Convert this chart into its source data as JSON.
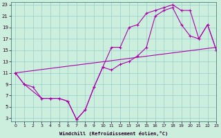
{
  "xlabel": "Windchill (Refroidissement éolien,°C)",
  "bg_color": "#cceedd",
  "line_color": "#aa00aa",
  "grid_color": "#99cccc",
  "xlim": [
    -0.5,
    23
  ],
  "ylim": [
    2.5,
    23.5
  ],
  "xticks": [
    0,
    1,
    2,
    3,
    4,
    5,
    6,
    7,
    8,
    9,
    10,
    11,
    12,
    13,
    14,
    15,
    16,
    17,
    18,
    19,
    20,
    21,
    22,
    23
  ],
  "yticks": [
    3,
    5,
    7,
    9,
    11,
    13,
    15,
    17,
    19,
    21,
    23
  ],
  "line1_x": [
    0,
    1,
    2,
    3,
    4,
    5,
    6,
    7,
    8,
    9,
    10,
    11,
    12,
    13,
    14,
    15,
    16,
    17,
    18,
    19,
    20,
    21,
    22,
    23
  ],
  "line1_y": [
    11,
    9,
    8.5,
    6.5,
    6.5,
    6.5,
    6,
    2.8,
    4.5,
    8.5,
    12,
    15.5,
    15.5,
    19,
    19.5,
    21.5,
    22,
    22.5,
    23,
    22,
    22,
    17,
    19.5,
    15
  ],
  "line2_x": [
    0,
    1,
    3,
    4,
    5,
    6,
    7,
    8,
    9,
    10,
    11,
    12,
    13,
    14,
    15,
    16,
    17,
    18,
    19,
    20,
    21,
    22,
    23
  ],
  "line2_y": [
    11,
    9,
    6.5,
    6.5,
    6.5,
    6,
    2.8,
    4.5,
    8.5,
    12,
    11.5,
    12.5,
    13,
    14,
    15.5,
    21,
    22,
    22.5,
    19.5,
    17.5,
    17,
    19.5,
    15
  ],
  "line3_x": [
    0,
    23
  ],
  "line3_y": [
    11,
    15.5
  ],
  "marker1_x": [
    0,
    1,
    2,
    3,
    4,
    5,
    6,
    7,
    8,
    9,
    10,
    11,
    12,
    13,
    14,
    15,
    16,
    17,
    18,
    19,
    20,
    21,
    22,
    23
  ],
  "marker1_y": [
    11,
    9,
    8.5,
    6.5,
    6.5,
    6.5,
    6,
    2.8,
    4.5,
    8.5,
    12,
    15.5,
    15.5,
    19,
    19.5,
    21.5,
    22,
    22.5,
    23,
    22,
    22,
    17,
    19.5,
    15
  ],
  "marker2_x": [
    0,
    1,
    3,
    4,
    5,
    6,
    7,
    8,
    9,
    10,
    11,
    12,
    13,
    14,
    15,
    16,
    17,
    18,
    19,
    20,
    21,
    22,
    23
  ],
  "marker2_y": [
    11,
    9,
    6.5,
    6.5,
    6.5,
    6,
    2.8,
    4.5,
    8.5,
    12,
    11.5,
    12.5,
    13,
    14,
    15.5,
    21,
    22,
    22.5,
    19.5,
    17.5,
    17,
    19.5,
    15
  ]
}
